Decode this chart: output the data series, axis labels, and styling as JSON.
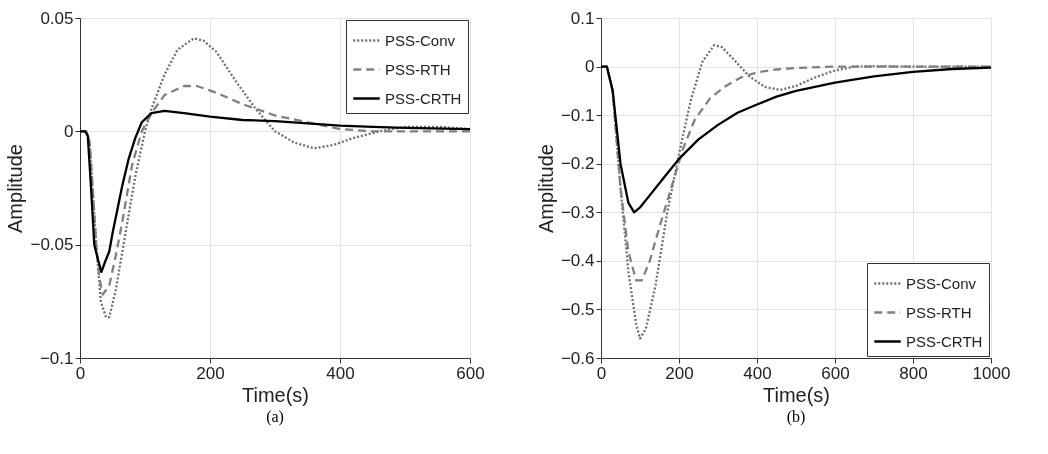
{
  "chart_data": [
    {
      "type": "line",
      "xlabel": "Time(s)",
      "ylabel": "Amplitude",
      "annotations": [
        "(a)"
      ],
      "xlim": [
        0,
        600
      ],
      "xticks": [
        0,
        200,
        400,
        600
      ],
      "ylim": [
        -0.1,
        0.05
      ],
      "yticks": [
        -0.1,
        -0.05,
        0,
        0.05
      ],
      "grid": true,
      "legend": "top right",
      "series": [
        {
          "name": "PSS-Conv",
          "color": "#6e6e6e",
          "line_style": "dotted",
          "x": [
            0,
            10,
            15,
            25,
            32,
            40,
            45,
            55,
            70,
            85,
            100,
            110,
            130,
            150,
            175,
            190,
            210,
            240,
            270,
            300,
            330,
            360,
            390,
            420,
            460,
            500,
            550,
            600
          ],
          "values": [
            0,
            0,
            -0.005,
            -0.05,
            -0.075,
            -0.082,
            -0.082,
            -0.07,
            -0.045,
            -0.02,
            0,
            0.01,
            0.025,
            0.036,
            0.041,
            0.04,
            0.035,
            0.022,
            0.01,
            0,
            -0.005,
            -0.0075,
            -0.006,
            -0.003,
            0,
            0.002,
            0.002,
            0.001
          ]
        },
        {
          "name": "PSS-RTH",
          "color": "#808080",
          "line_style": "dashed",
          "x": [
            0,
            10,
            15,
            25,
            30,
            35,
            45,
            55,
            65,
            80,
            95,
            110,
            130,
            160,
            180,
            210,
            250,
            300,
            350,
            400,
            450,
            500,
            550,
            600
          ],
          "values": [
            0,
            0,
            -0.005,
            -0.05,
            -0.065,
            -0.072,
            -0.068,
            -0.055,
            -0.04,
            -0.015,
            0,
            0.008,
            0.016,
            0.02,
            0.02,
            0.017,
            0.012,
            0.007,
            0.004,
            0.001,
            0,
            0,
            0,
            0
          ]
        },
        {
          "name": "PSS-CRTH",
          "color": "#000000",
          "line_style": "solid",
          "x": [
            0,
            8,
            12,
            17,
            22,
            28,
            33,
            38,
            45,
            50,
            55,
            65,
            75,
            85,
            95,
            110,
            130,
            160,
            200,
            250,
            300,
            350,
            400,
            450,
            500,
            600
          ],
          "values": [
            0,
            0,
            -0.002,
            -0.025,
            -0.05,
            -0.057,
            -0.062,
            -0.058,
            -0.053,
            -0.045,
            -0.038,
            -0.024,
            -0.012,
            -0.003,
            0.004,
            0.008,
            0.009,
            0.008,
            0.0065,
            0.005,
            0.0045,
            0.0035,
            0.0025,
            0.002,
            0.0015,
            0.001
          ]
        }
      ]
    },
    {
      "type": "line",
      "xlabel": "Time(s)",
      "ylabel": "Amplitude",
      "annotations": [
        "(b)"
      ],
      "xlim": [
        0,
        1000
      ],
      "xticks": [
        0,
        200,
        400,
        600,
        800,
        1000
      ],
      "ylim": [
        -0.6,
        0.1
      ],
      "yticks": [
        -0.6,
        -0.5,
        -0.4,
        -0.3,
        -0.2,
        -0.1,
        0,
        0.1
      ],
      "grid": true,
      "legend": "bottom right",
      "series": [
        {
          "name": "PSS-Conv",
          "color": "#6e6e6e",
          "line_style": "dotted",
          "x": [
            0,
            15,
            30,
            50,
            70,
            90,
            100,
            115,
            140,
            170,
            200,
            230,
            260,
            290,
            310,
            340,
            380,
            420,
            460,
            500,
            550,
            600,
            650,
            700,
            800,
            1000
          ],
          "values": [
            0,
            0,
            -0.05,
            -0.25,
            -0.42,
            -0.53,
            -0.56,
            -0.54,
            -0.45,
            -0.3,
            -0.18,
            -0.07,
            0.01,
            0.044,
            0.04,
            0.015,
            -0.02,
            -0.042,
            -0.048,
            -0.04,
            -0.022,
            -0.008,
            0,
            0.001,
            0,
            0
          ]
        },
        {
          "name": "PSS-RTH",
          "color": "#808080",
          "line_style": "dashed",
          "x": [
            0,
            15,
            30,
            50,
            70,
            90,
            105,
            125,
            150,
            180,
            210,
            240,
            280,
            320,
            360,
            400,
            450,
            500,
            600,
            1000
          ],
          "values": [
            0,
            0,
            -0.05,
            -0.25,
            -0.38,
            -0.44,
            -0.44,
            -0.4,
            -0.33,
            -0.25,
            -0.17,
            -0.11,
            -0.065,
            -0.04,
            -0.022,
            -0.012,
            -0.006,
            -0.003,
            0,
            0
          ]
        },
        {
          "name": "PSS-CRTH",
          "color": "#000000",
          "line_style": "solid",
          "x": [
            0,
            15,
            30,
            50,
            70,
            85,
            100,
            130,
            160,
            200,
            250,
            300,
            350,
            400,
            450,
            500,
            600,
            700,
            800,
            900,
            1000
          ],
          "values": [
            0,
            0,
            -0.05,
            -0.2,
            -0.28,
            -0.3,
            -0.29,
            -0.26,
            -0.23,
            -0.19,
            -0.15,
            -0.12,
            -0.095,
            -0.078,
            -0.062,
            -0.05,
            -0.033,
            -0.02,
            -0.011,
            -0.005,
            -0.002
          ]
        }
      ]
    }
  ]
}
